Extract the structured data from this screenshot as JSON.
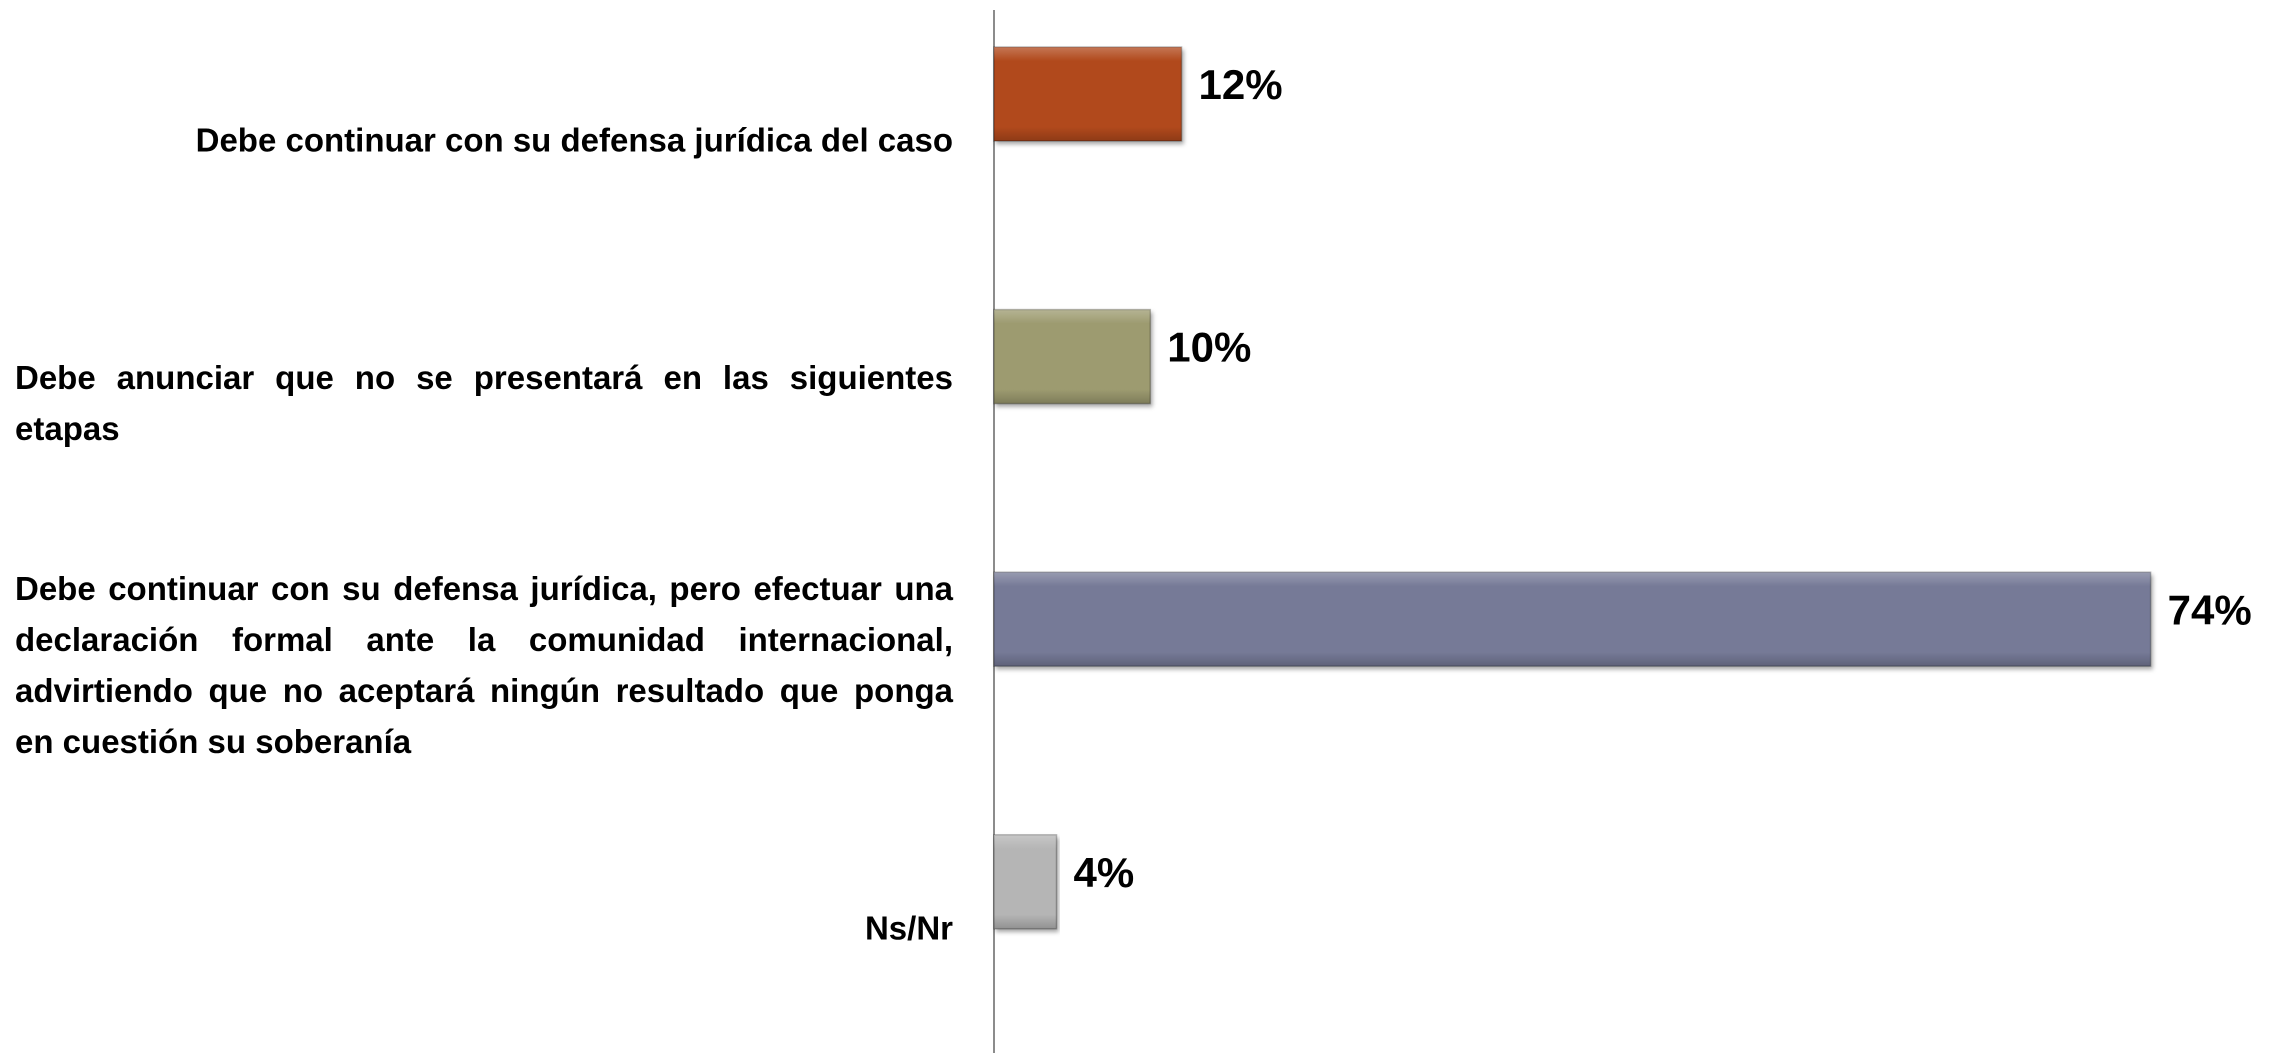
{
  "chart_data": {
    "type": "bar",
    "orientation": "horizontal",
    "categories": [
      "Debe continuar con su defensa jurídica del caso",
      "Debe anunciar que no se presentará en las siguientes etapas",
      "Debe continuar con su defensa jurídica, pero efectuar una declaración formal ante la comunidad internacional, advirtiendo que no aceptará ningún resultado que ponga en cuestión su soberanía",
      "Ns/Nr"
    ],
    "values": [
      12,
      10,
      74,
      4
    ],
    "value_labels": [
      "12%",
      "10%",
      "74%",
      "4%"
    ],
    "colors": [
      "#b1481f",
      "#9d9b70",
      "#767a97",
      "#b5b5b5"
    ]
  }
}
